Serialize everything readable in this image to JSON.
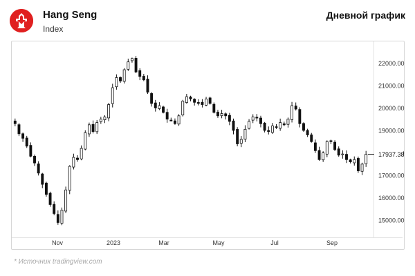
{
  "header": {
    "title": "Hang Seng",
    "subtitle": "Index",
    "chart_label": "Дневной график"
  },
  "logo": {
    "icon": "hang-seng-logo-icon",
    "color": "#e02020"
  },
  "footer": {
    "source": "*  Источник tradingview.com"
  },
  "colors": {
    "up": "#ffffff",
    "down": "#111111",
    "wick": "#111111",
    "last_price_label_bg": "#ffffff"
  },
  "chart_data": {
    "type": "candlestick",
    "title": "Hang Seng",
    "subtitle": "Index",
    "y_tick_labels": [
      "15000.00",
      "16000.00",
      "17000.00",
      "18000.00",
      "19000.00",
      "20000.00",
      "21000.00",
      "22000.00"
    ],
    "x_tick_labels": [
      "Nov",
      "2023",
      "Mar",
      "May",
      "Jul",
      "Sep"
    ],
    "last_price_label": "17937.38",
    "ylim": [
      14300,
      22900
    ],
    "grid": false,
    "series": [
      {
        "close": [
          19300,
          18850,
          18650,
          18300,
          17850,
          17550,
          17100,
          16600,
          16150,
          15700,
          15300,
          14900,
          15450,
          16350,
          17400,
          17800,
          17700,
          18200,
          18900,
          19250,
          18950,
          19350,
          19500,
          19600,
          20150,
          20900,
          21350,
          21200,
          21700,
          22050,
          22200,
          21600,
          21400,
          21250,
          20700,
          20200,
          20000,
          20100,
          19800,
          19500,
          19450,
          19300,
          19650,
          20300,
          20500,
          20400,
          20250,
          20200,
          20150,
          20400,
          20200,
          19800,
          19650,
          19750,
          19650,
          19400,
          19000,
          18400,
          18600,
          19050,
          19400,
          19600,
          19550,
          19300,
          19000,
          18950,
          19200,
          19150,
          19350,
          19250,
          19500,
          20100,
          19950,
          19300,
          19000,
          18800,
          18500,
          18100,
          17700,
          18000,
          18500,
          18500,
          18150,
          17900,
          17950,
          17700,
          17600,
          17700,
          17200,
          17500,
          17937.38
        ]
      }
    ]
  }
}
